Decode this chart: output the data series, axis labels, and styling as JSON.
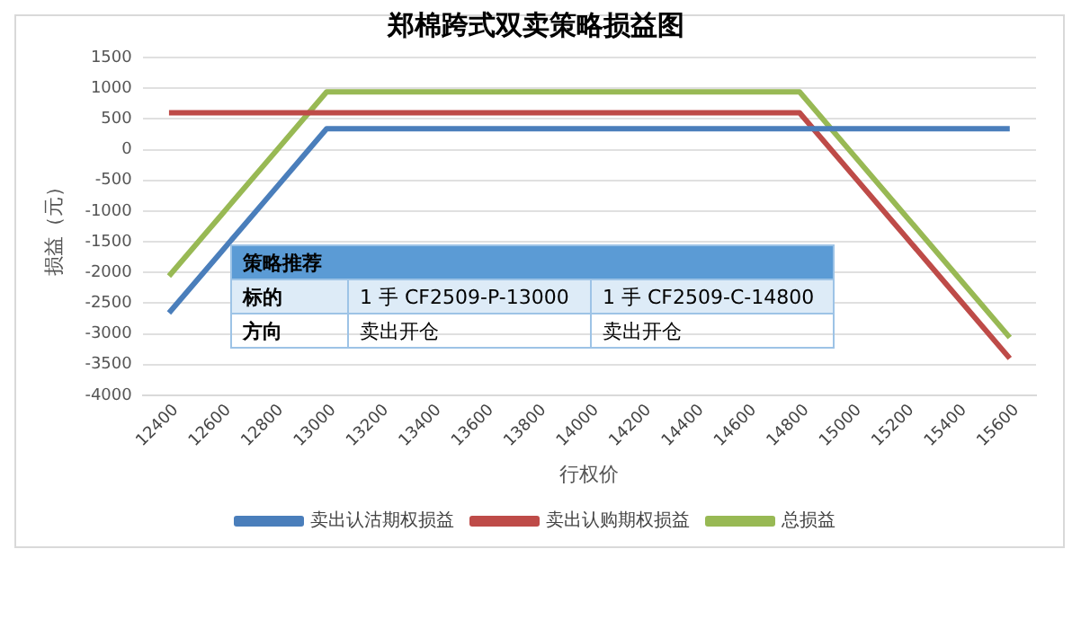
{
  "chart_data": {
    "type": "line",
    "title": "郑棉跨式双卖策略损益图",
    "xlabel": "行权价",
    "ylabel": "损益（元）",
    "categories": [
      "12400",
      "12600",
      "12800",
      "13000",
      "13200",
      "13400",
      "13600",
      "13800",
      "14000",
      "14200",
      "14400",
      "14600",
      "14800",
      "15000",
      "15200",
      "15400",
      "15600"
    ],
    "series": [
      {
        "name": "卖出认沽期权损益",
        "color": "#4a7ebb",
        "values": [
          -2660,
          -1660,
          -660,
          340,
          340,
          340,
          340,
          340,
          340,
          340,
          340,
          340,
          340,
          340,
          340,
          340,
          340
        ]
      },
      {
        "name": "卖出认购期权损益",
        "color": "#be4b48",
        "values": [
          600,
          600,
          600,
          600,
          600,
          600,
          600,
          600,
          600,
          600,
          600,
          600,
          600,
          -400,
          -1400,
          -2400,
          -3400
        ]
      },
      {
        "name": "总损益",
        "color": "#98b954",
        "values": [
          -2060,
          -1060,
          -60,
          940,
          940,
          940,
          940,
          940,
          940,
          940,
          940,
          940,
          940,
          -60,
          -1060,
          -2060,
          -3060
        ]
      }
    ],
    "ylim": [
      -4000,
      1500
    ],
    "yticks": [
      -4000,
      -3500,
      -3000,
      -2500,
      -2000,
      -1500,
      -1000,
      -500,
      0,
      500,
      1000,
      1500
    ],
    "grid": "y",
    "legend": "bottom",
    "marker": "none",
    "line_style": "solid",
    "annotations": [
      "策略推荐",
      "标的",
      "1 手 CF2509-P-13000",
      "1 手 CF2509-C-14800",
      "方向",
      "卖出开仓",
      "卖出开仓"
    ]
  }
}
